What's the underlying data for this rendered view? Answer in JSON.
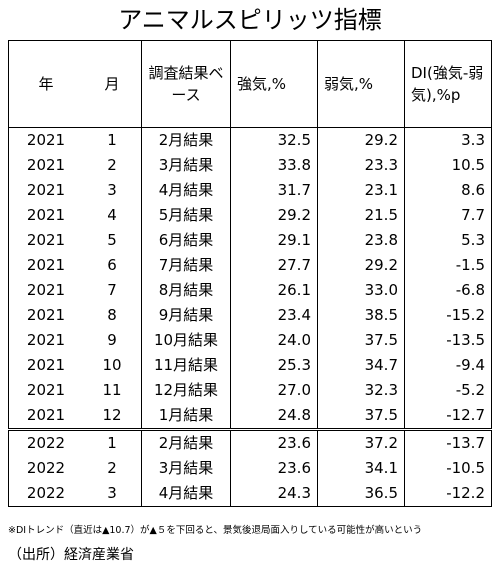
{
  "title": "アニマルスピリッツ指標",
  "table": {
    "header": [
      "年",
      "月",
      "調査結果ベース",
      "強気,%",
      "弱気,%",
      "DI(強気-弱気),%p"
    ],
    "rows": [
      [
        "2021",
        "1",
        "2月結果",
        "32.5",
        "29.2",
        "3.3"
      ],
      [
        "2021",
        "2",
        "3月結果",
        "33.8",
        "23.3",
        "10.5"
      ],
      [
        "2021",
        "3",
        "4月結果",
        "31.7",
        "23.1",
        "8.6"
      ],
      [
        "2021",
        "4",
        "5月結果",
        "29.2",
        "21.5",
        "7.7"
      ],
      [
        "2021",
        "5",
        "6月結果",
        "29.1",
        "23.8",
        "5.3"
      ],
      [
        "2021",
        "6",
        "7月結果",
        "27.7",
        "29.2",
        "-1.5"
      ],
      [
        "2021",
        "7",
        "8月結果",
        "26.1",
        "33.0",
        "-6.8"
      ],
      [
        "2021",
        "8",
        "9月結果",
        "23.4",
        "38.5",
        "-15.2"
      ],
      [
        "2021",
        "9",
        "10月結果",
        "24.0",
        "37.5",
        "-13.5"
      ],
      [
        "2021",
        "10",
        "11月結果",
        "25.3",
        "34.7",
        "-9.4"
      ],
      [
        "2021",
        "11",
        "12月結果",
        "27.0",
        "32.3",
        "-5.2"
      ],
      [
        "2021",
        "12",
        "1月結果",
        "24.8",
        "37.5",
        "-12.7"
      ],
      [
        "2022",
        "1",
        "2月結果",
        "23.6",
        "37.2",
        "-13.7"
      ],
      [
        "2022",
        "2",
        "3月結果",
        "23.6",
        "34.1",
        "-10.5"
      ],
      [
        "2022",
        "3",
        "4月結果",
        "24.3",
        "36.5",
        "-12.2"
      ]
    ]
  },
  "footnote": "※DIトレンド（直近は▲10.7）が▲５を下回ると、景気後退局面入りしている可能性が高いという",
  "source": "（出所）経済産業省"
}
